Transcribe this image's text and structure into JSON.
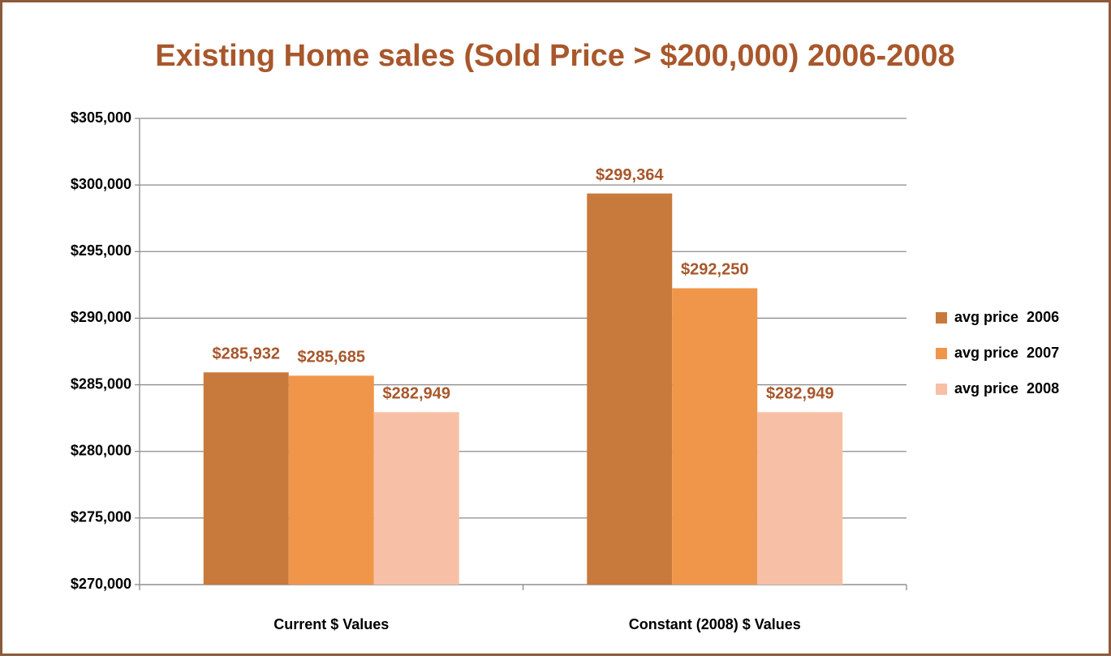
{
  "chart_data": {
    "type": "bar",
    "title": "Existing Home sales (Sold Price > $200,000)  2006-2008",
    "categories": [
      "Current $ Values",
      "Constant (2008) $ Values"
    ],
    "series": [
      {
        "name": "avg price  2006",
        "color": "#c87a3c",
        "values": [
          285932,
          299364
        ],
        "value_labels": [
          "$285,932",
          "$299,364"
        ]
      },
      {
        "name": "avg price  2007",
        "color": "#f0964a",
        "values": [
          285685,
          292250
        ],
        "value_labels": [
          "$285,685",
          "$292,250"
        ]
      },
      {
        "name": "avg price  2008",
        "color": "#f7c0a6",
        "values": [
          282949,
          282949
        ],
        "value_labels": [
          "$282,949",
          "$282,949"
        ]
      }
    ],
    "ylim": [
      270000,
      305000
    ],
    "yticks": [
      {
        "value": 270000,
        "label": "$270,000"
      },
      {
        "value": 275000,
        "label": "$275,000"
      },
      {
        "value": 280000,
        "label": "$280,000"
      },
      {
        "value": 285000,
        "label": "$285,000"
      },
      {
        "value": 290000,
        "label": "$290,000"
      },
      {
        "value": 295000,
        "label": "$295,000"
      },
      {
        "value": 300000,
        "label": "$300,000"
      },
      {
        "value": 305000,
        "label": "$305,000"
      }
    ],
    "grid": true,
    "legend": "right"
  }
}
